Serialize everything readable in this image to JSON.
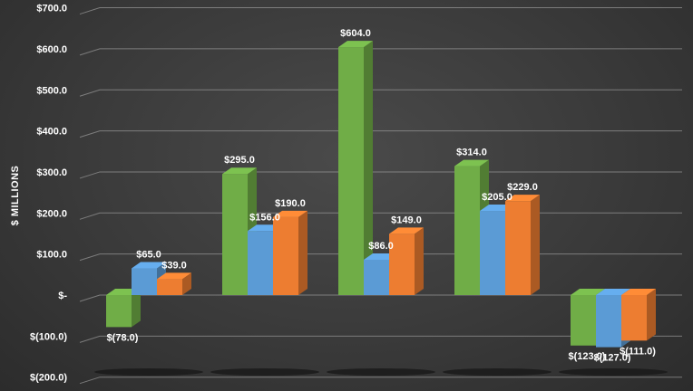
{
  "chart_data": {
    "type": "bar",
    "title": "",
    "xlabel": "",
    "ylabel": "$ MILLIONS",
    "ylim": [
      -200,
      700
    ],
    "y_ticks": [
      -200,
      -100,
      0,
      100,
      200,
      300,
      400,
      500,
      600,
      700
    ],
    "y_tick_labels": [
      "$(200.0)",
      "$(100.0)",
      "$-",
      "$100.0",
      "$200.0",
      "$300.0",
      "$400.0",
      "$500.0",
      "$600.0",
      "$700.0"
    ],
    "grid": true,
    "legend": "none",
    "categories": [
      "",
      "",
      "",
      "",
      ""
    ],
    "series": [
      {
        "values": [
          -78,
          295,
          604,
          314,
          -123
        ],
        "labels": [
          "$(78.0)",
          "$295.0",
          "$604.0",
          "$314.0",
          "$(123.0)"
        ],
        "color": "#70ad47"
      },
      {
        "values": [
          65,
          156,
          86,
          205,
          -127
        ],
        "labels": [
          "$65.0",
          "$156.0",
          "$86.0",
          "$205.0",
          "$(127.0)"
        ],
        "color": "#5b9bd5"
      },
      {
        "values": [
          39,
          190,
          149,
          229,
          -111
        ],
        "labels": [
          "$39.0",
          "$190.0",
          "$149.0",
          "$229.0",
          "$(111.0)"
        ],
        "color": "#ed7d31"
      }
    ],
    "colors": {
      "gridline": "#9a9a9a",
      "text": "#ffffff"
    }
  }
}
